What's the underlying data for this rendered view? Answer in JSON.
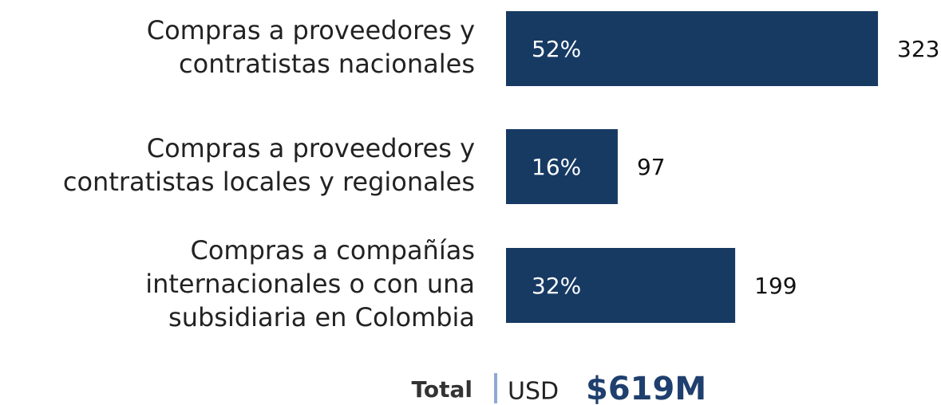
{
  "chart_data": {
    "type": "barh",
    "categories": [
      [
        "Compras a proveedores y",
        "contratistas nacionales"
      ],
      [
        "Compras a proveedores y",
        "contratistas locales y regionales"
      ],
      [
        "Compras a compañías",
        "internacionales o con una",
        "subsidiaria en Colombia"
      ]
    ],
    "values": [
      323,
      97,
      199
    ],
    "shares": [
      52,
      16,
      32
    ],
    "share_labels": [
      "52%",
      "16%",
      "32%"
    ],
    "color": "#173a63",
    "xlim": [
      0,
      350
    ],
    "total": {
      "label": "Total",
      "unit": "USD",
      "amount": "$619M"
    }
  }
}
